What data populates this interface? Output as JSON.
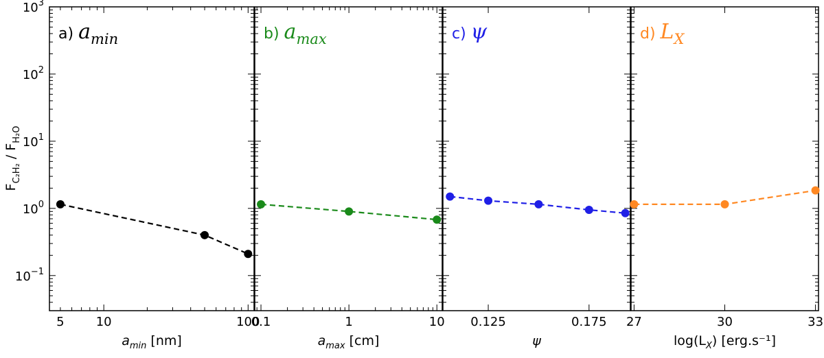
{
  "chart_data": {
    "type": "line",
    "y_axis": {
      "label_main": "F",
      "label_num_sub": "C₂H₂",
      "label_sep": " / ",
      "label_den_sub": "H₂O",
      "scale": "log",
      "ylim": [
        0.03,
        1000
      ],
      "tick_labels": [
        {
          "value": 0.1,
          "base": "10",
          "exp": "−1"
        },
        {
          "value": 1,
          "base": "10",
          "exp": "0"
        },
        {
          "value": 10,
          "base": "10",
          "exp": "1"
        },
        {
          "value": 100,
          "base": "10",
          "exp": "2"
        },
        {
          "value": 1000,
          "base": "10",
          "exp": "3"
        }
      ]
    },
    "panels": [
      {
        "id": "a",
        "title_prefix": "a) ",
        "title_sym": "a",
        "title_sub": "min",
        "color": "#000000",
        "x_scale": "log",
        "xlim": [
          4.2,
          110
        ],
        "xticks": [
          {
            "value": 5,
            "label": "5"
          },
          {
            "value": 10,
            "label": "10"
          },
          {
            "value": 100,
            "label": "100"
          }
        ],
        "xlabel_sym": "a",
        "xlabel_sub": "min",
        "xlabel_unit": " [nm]",
        "x": [
          5,
          50,
          100
        ],
        "y": [
          1.15,
          0.4,
          0.21
        ]
      },
      {
        "id": "b",
        "title_prefix": "b) ",
        "title_sym": "a",
        "title_sub": "max",
        "color": "#1a8a1a",
        "x_scale": "log",
        "xlim": [
          0.085,
          11.5
        ],
        "xticks": [
          {
            "value": 0.1,
            "label": "0.1"
          },
          {
            "value": 1,
            "label": "1"
          },
          {
            "value": 10,
            "label": "10"
          }
        ],
        "xlabel_sym": "a",
        "xlabel_sub": "max",
        "xlabel_unit": " [cm]",
        "x": [
          0.1,
          1,
          10
        ],
        "y": [
          1.15,
          0.9,
          0.68
        ]
      },
      {
        "id": "c",
        "title_prefix": "c) ",
        "title_sym": "ψ",
        "title_sub": "",
        "color": "#1f1fe6",
        "x_scale": "linear",
        "xlim": [
          0.1025,
          0.1955
        ],
        "xticks": [
          {
            "value": 0.125,
            "label": "0.125"
          },
          {
            "value": 0.175,
            "label": "0.175"
          }
        ],
        "xlabel_sym": "ψ",
        "xlabel_sub": "",
        "xlabel_unit": "",
        "x": [
          0.106,
          0.125,
          0.15,
          0.175,
          0.193
        ],
        "y": [
          1.5,
          1.3,
          1.15,
          0.95,
          0.85
        ]
      },
      {
        "id": "d",
        "title_prefix": "d) ",
        "title_sym": "L",
        "title_sub": "X",
        "color": "#ff8822",
        "x_scale": "linear",
        "xlim": [
          26.9,
          33.1
        ],
        "xticks": [
          {
            "value": 27,
            "label": "27"
          },
          {
            "value": 30,
            "label": "30"
          },
          {
            "value": 33,
            "label": "33"
          }
        ],
        "xlabel_sym": "log(L",
        "xlabel_sub": "X",
        "xlabel_unit": ") [erg.s⁻¹]",
        "x": [
          27,
          30,
          33
        ],
        "y": [
          1.15,
          1.15,
          1.85
        ]
      }
    ]
  }
}
